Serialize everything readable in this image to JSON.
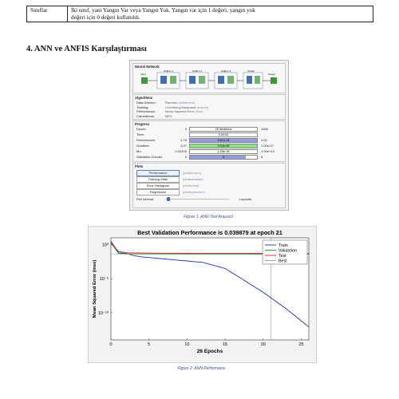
{
  "table": {
    "label": "Sınıflar",
    "text_line1": "İki sınıf, yani Yangın Var veya Yangın Yok. Yangın var için 1 değeri, yangın yok",
    "text_line2": "değeri için 0 değeri kullanıldı."
  },
  "section_title": "4. ANN ve ANFIS Karşılaştırması",
  "nntool": {
    "neural_network_title": "Neural Network",
    "diagram_labels": [
      "Input",
      "Hidden 1",
      "Hidden 2",
      "Hidden 3",
      "Output",
      "Output"
    ],
    "algorithms_title": "Algorithms",
    "algorithms": [
      {
        "key": "Data Division:",
        "value": "Random",
        "fn": "(dividerand)"
      },
      {
        "key": "Training:",
        "value": "Levenberg-Marquardt",
        "fn": "(trainlm)"
      },
      {
        "key": "Performance:",
        "value": "Mean Squared Error",
        "fn": "(mse)"
      },
      {
        "key": "Calculations:",
        "value": "MEX",
        "fn": ""
      }
    ],
    "progress_title": "Progress",
    "progress": [
      {
        "label": "Epoch:",
        "lo": "0",
        "bar_text": "26 iterations",
        "hi": "1000",
        "fill": 1.0,
        "color": "#ffffff"
      },
      {
        "label": "Time:",
        "lo": "",
        "bar_text": "0:00:00",
        "hi": "",
        "fill": 0.0,
        "color": "#ffffff"
      },
      {
        "label": "Performance:",
        "lo": "1.76",
        "bar_text": "5.87e-14",
        "hi": "0.00",
        "fill": 1.0,
        "color": "#8f9be0"
      },
      {
        "label": "Gradient:",
        "lo": "3.07",
        "bar_text": "9.04e-08",
        "hi": "1.00e-07",
        "fill": 1.0,
        "color": "#8fe07f"
      },
      {
        "label": "Mu:",
        "lo": "0.00100",
        "bar_text": "1.00e-16",
        "hi": "1.00e+10",
        "fill": 0.0,
        "color": "#ffffff"
      },
      {
        "label": "Validation Checks:",
        "lo": "0",
        "bar_text": "5",
        "hi": "6",
        "fill": 0.83,
        "color": "#8f9be0"
      }
    ],
    "plots_title": "Plots",
    "plot_buttons": [
      {
        "label": "Performance",
        "fn": "(plotperform)"
      },
      {
        "label": "Training State",
        "fn": "(plottrainstate)"
      },
      {
        "label": "Error Histogram",
        "fn": "(ploterrhist)"
      },
      {
        "label": "Regression",
        "fn": "(plotregression)"
      }
    ],
    "plot_interval_label": "Plot Interval:",
    "plot_interval_value": "1 epochs"
  },
  "caption1": "Figure 1: ANN Tool Arayüzü",
  "caption2": "Figure 2: ANN Performansı",
  "chart_data": {
    "type": "line",
    "title": "Best Validation Performance is 0.039879 at epoch 21",
    "xlabel": "26 Epochs",
    "ylabel": "Mean Squared Error  (mse)",
    "xlim": [
      0,
      26
    ],
    "ylim_log10": [
      -14,
      1
    ],
    "x_ticks": [
      0,
      5,
      10,
      15,
      20,
      25
    ],
    "y_ticks": [
      {
        "exp": 0,
        "label": "10⁰"
      },
      {
        "exp": -5,
        "label": "10⁻⁵"
      },
      {
        "exp": -10,
        "label": "10⁻¹⁰"
      }
    ],
    "legend": [
      "Train",
      "Validation",
      "Test",
      "Best"
    ],
    "legend_position": "top-right",
    "best_epoch": 21,
    "best_value": 0.039879,
    "series": [
      {
        "name": "Train",
        "color": "#1f2fb0",
        "x": [
          0,
          1,
          2,
          3,
          4,
          5,
          6,
          7,
          8,
          9,
          10,
          11,
          12,
          13,
          14,
          15,
          16,
          17,
          18,
          19,
          20,
          21,
          22,
          23,
          24,
          25,
          26
        ],
        "log10": [
          0.5,
          -1.2,
          -1.3,
          -1.6,
          -1.8,
          -1.9,
          -2.0,
          -2.1,
          -2.2,
          -2.3,
          -2.4,
          -2.5,
          -2.6,
          -2.9,
          -3.2,
          -3.5,
          -4.2,
          -4.9,
          -5.6,
          -6.3,
          -7.0,
          -7.8,
          -8.6,
          -9.4,
          -10.3,
          -11.2,
          -12.1
        ]
      },
      {
        "name": "Validation",
        "color": "#1aa01a",
        "x": [
          0,
          1,
          2,
          5,
          10,
          15,
          20,
          21,
          26
        ],
        "log10": [
          0.3,
          -1.3,
          -1.35,
          -1.37,
          -1.38,
          -1.39,
          -1.4,
          -1.4,
          -1.4
        ]
      },
      {
        "name": "Test",
        "color": "#cc2222",
        "x": [
          0,
          1,
          2,
          5,
          10,
          15,
          20,
          21,
          26
        ],
        "log10": [
          0.2,
          -1.0,
          -1.2,
          -1.25,
          -1.28,
          -1.3,
          -1.3,
          -1.29,
          -1.28
        ]
      },
      {
        "name": "Best",
        "color": "#9a9a9a",
        "x": [
          0,
          26
        ],
        "log10": [
          -1.4,
          -1.4
        ]
      }
    ]
  }
}
